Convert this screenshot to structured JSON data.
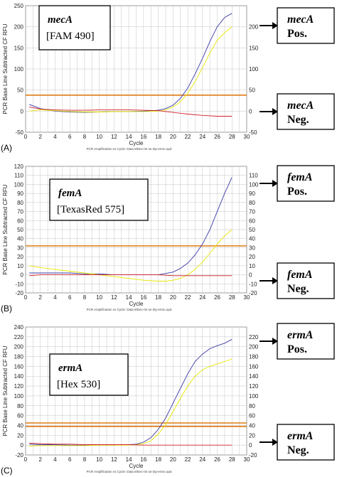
{
  "colors": {
    "positive_curve": "#3a3aa8",
    "positive_curve_2": "#e6e600",
    "negative_curve": "#d4202a",
    "threshold": "#e07a10",
    "grid": "#c4c4c4"
  },
  "chart_data": [
    {
      "type": "line",
      "panel_label": "(A)",
      "gene": "mecA",
      "dye": "[FAM 490]",
      "ylabel": "PCR Base Line Subtracted CF RFU",
      "xlabel": "Cycle",
      "footer": "PCR Amplification vs Cycle: Data 8/Dec-04 se trip-ermn.opd",
      "xlim": [
        0,
        30
      ],
      "ylim": [
        -50,
        250
      ],
      "xticks": [
        0,
        2,
        4,
        6,
        8,
        10,
        12,
        14,
        16,
        18,
        20,
        22,
        24,
        26,
        28,
        30
      ],
      "yticks": [
        -50,
        0,
        50,
        100,
        150,
        200,
        250
      ],
      "yticks_right": [
        -50,
        0,
        50,
        100,
        150,
        200
      ],
      "thresholds": [
        38
      ],
      "pos_label": {
        "gene": "mecA",
        "text": "Pos."
      },
      "neg_label": {
        "gene": "mecA",
        "text": "Neg."
      },
      "series": [
        {
          "x": [
            0.5,
            2,
            4,
            6,
            8,
            10,
            12,
            14,
            16,
            18,
            19,
            20,
            21,
            22,
            23,
            24,
            25,
            26,
            27,
            28
          ],
          "values": [
            16,
            6,
            0,
            -2,
            -3,
            -2,
            -1,
            -1,
            0,
            2,
            6,
            14,
            30,
            55,
            88,
            125,
            165,
            200,
            222,
            232
          ]
        },
        {
          "x": [
            0.5,
            2,
            4,
            6,
            8,
            10,
            12,
            14,
            16,
            18,
            19,
            20,
            21,
            22,
            23,
            24,
            25,
            26,
            27,
            28
          ],
          "values": [
            0,
            3,
            1,
            -1,
            -2,
            -2,
            -1,
            -1,
            -1,
            0,
            3,
            10,
            22,
            42,
            70,
            103,
            138,
            168,
            186,
            200
          ]
        },
        {
          "x": [
            0.5,
            2,
            4,
            6,
            8,
            10,
            12,
            14,
            16,
            18,
            20,
            22,
            24,
            26,
            28
          ],
          "values": [
            10,
            5,
            3,
            2,
            2,
            3,
            3,
            3,
            2,
            1,
            -3,
            -7,
            -10,
            -12,
            -12
          ]
        }
      ]
    },
    {
      "type": "line",
      "panel_label": "(B)",
      "gene": "femA",
      "dye": "[TexasRed 575]",
      "ylabel": "PCR Base Line Subtracted CF RFU",
      "xlabel": "Cycle",
      "footer": "PCR Amplification vs Cycle: Data 8/Dec-04 se trip-ermn.opd",
      "xlim": [
        0,
        30
      ],
      "ylim": [
        -20,
        120
      ],
      "xticks": [
        0,
        2,
        4,
        6,
        8,
        10,
        12,
        14,
        16,
        18,
        20,
        22,
        24,
        26,
        28,
        30
      ],
      "yticks": [
        -20,
        -10,
        0,
        10,
        20,
        30,
        40,
        50,
        60,
        70,
        80,
        90,
        100,
        110,
        120
      ],
      "yticks_right": [
        -20,
        -10,
        0,
        10,
        20,
        30,
        40,
        50,
        60,
        70,
        80,
        90,
        100,
        110
      ],
      "thresholds": [
        32
      ],
      "pos_label": {
        "gene": "femA",
        "text": "Pos."
      },
      "neg_label": {
        "gene": "femA",
        "text": "Neg."
      },
      "series": [
        {
          "x": [
            0.5,
            2,
            4,
            6,
            8,
            10,
            12,
            14,
            16,
            18,
            20,
            21,
            22,
            23,
            24,
            25,
            26,
            27,
            28
          ],
          "values": [
            2,
            2,
            2,
            2,
            1,
            1,
            0,
            0,
            0,
            0,
            3,
            7,
            13,
            22,
            34,
            50,
            70,
            90,
            108
          ]
        },
        {
          "x": [
            0.5,
            2,
            4,
            6,
            8,
            10,
            12,
            14,
            16,
            18,
            19,
            20,
            21,
            22,
            23,
            24,
            25,
            26,
            27,
            28
          ],
          "values": [
            10,
            8,
            6,
            4,
            2,
            0,
            -2,
            -4,
            -6,
            -7,
            -7,
            -6,
            -4,
            0,
            6,
            14,
            24,
            34,
            43,
            50
          ]
        },
        {
          "x": [
            0.5,
            2,
            4,
            6,
            8,
            10,
            12,
            14,
            16,
            18,
            20,
            22,
            24,
            26,
            28
          ],
          "values": [
            -1,
            0,
            0,
            0,
            0,
            0,
            0,
            0,
            0,
            0,
            -1,
            -1,
            -1,
            -1,
            -1
          ]
        }
      ]
    },
    {
      "type": "line",
      "panel_label": "(C)",
      "gene": "ermA",
      "dye": "[Hex 530]",
      "ylabel": "PCR Base Line Subtracted CF RFU",
      "xlabel": "Cycle",
      "footer": "PCR Amplification vs Cycle: Data 8/Dec-04 se trip-ermn.opd",
      "xlim": [
        0,
        30
      ],
      "ylim": [
        -20,
        240
      ],
      "xticks": [
        0,
        2,
        4,
        6,
        8,
        10,
        12,
        14,
        16,
        18,
        20,
        22,
        24,
        26,
        28,
        30
      ],
      "yticks": [
        -20,
        0,
        20,
        40,
        60,
        80,
        100,
        120,
        140,
        160,
        180,
        200,
        220,
        240
      ],
      "yticks_right": [
        -20,
        0,
        20,
        40,
        60,
        80,
        100,
        120,
        140,
        160,
        180,
        200,
        220
      ],
      "thresholds": [
        45,
        38
      ],
      "pos_label": {
        "gene": "ermA",
        "text": "Pos."
      },
      "neg_label": {
        "gene": "ermA",
        "text": "Neg."
      },
      "series": [
        {
          "x": [
            0.5,
            2,
            4,
            6,
            8,
            10,
            12,
            14,
            15,
            16,
            17,
            18,
            19,
            20,
            21,
            22,
            23,
            24,
            25,
            26,
            27,
            28
          ],
          "values": [
            2,
            1,
            1,
            0,
            0,
            0,
            0,
            1,
            2,
            6,
            15,
            32,
            55,
            85,
            115,
            145,
            170,
            185,
            196,
            202,
            207,
            215
          ]
        },
        {
          "x": [
            0.5,
            2,
            4,
            6,
            8,
            10,
            12,
            14,
            15,
            16,
            17,
            18,
            19,
            20,
            21,
            22,
            23,
            24,
            25,
            26,
            27,
            28
          ],
          "values": [
            -2,
            -1,
            -1,
            -1,
            -1,
            0,
            0,
            0,
            1,
            3,
            9,
            22,
            42,
            68,
            95,
            120,
            140,
            153,
            160,
            165,
            170,
            175
          ]
        },
        {
          "x": [
            0.5,
            2,
            4,
            6,
            8,
            10,
            12,
            14,
            16,
            18,
            20,
            22,
            24,
            26,
            28
          ],
          "values": [
            4,
            3,
            2,
            2,
            1,
            1,
            1,
            1,
            0,
            0,
            0,
            0,
            0,
            0,
            0
          ]
        }
      ]
    }
  ]
}
